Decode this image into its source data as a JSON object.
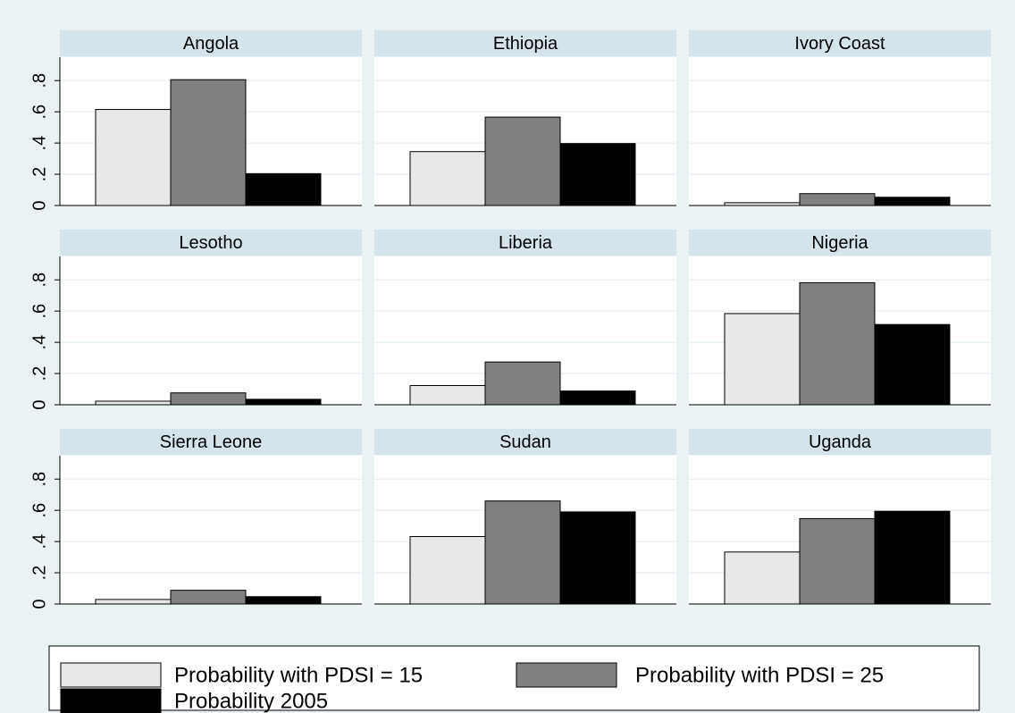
{
  "chart_data": {
    "type": "bar",
    "categories": [
      "Angola",
      "Ethiopia",
      "Ivory Coast",
      "Lesotho",
      "Liberia",
      "Nigeria",
      "Sierra Leone",
      "Sudan",
      "Uganda"
    ],
    "series": [
      {
        "name": "Probability with PDSI = 15",
        "color": "#e8e8e8",
        "values": [
          0.615,
          0.345,
          0.018,
          0.023,
          0.123,
          0.584,
          0.029,
          0.432,
          0.333
        ]
      },
      {
        "name": "Probability with PDSI = 25",
        "color": "#808080",
        "values": [
          0.806,
          0.566,
          0.076,
          0.076,
          0.274,
          0.782,
          0.088,
          0.66,
          0.547
        ]
      },
      {
        "name": "Probability 2005",
        "color": "#000000",
        "values": [
          0.204,
          0.397,
          0.053,
          0.035,
          0.088,
          0.514,
          0.047,
          0.59,
          0.594
        ]
      }
    ],
    "ylim": [
      0,
      0.95
    ],
    "yticks": [
      0,
      {
        "value": 0.2,
        "label": ".2"
      },
      {
        "value": 0.4,
        "label": ".4"
      },
      {
        "value": 0.6,
        "label": ".6"
      },
      {
        "value": 0.8,
        "label": ".8"
      }
    ],
    "grid": true
  }
}
